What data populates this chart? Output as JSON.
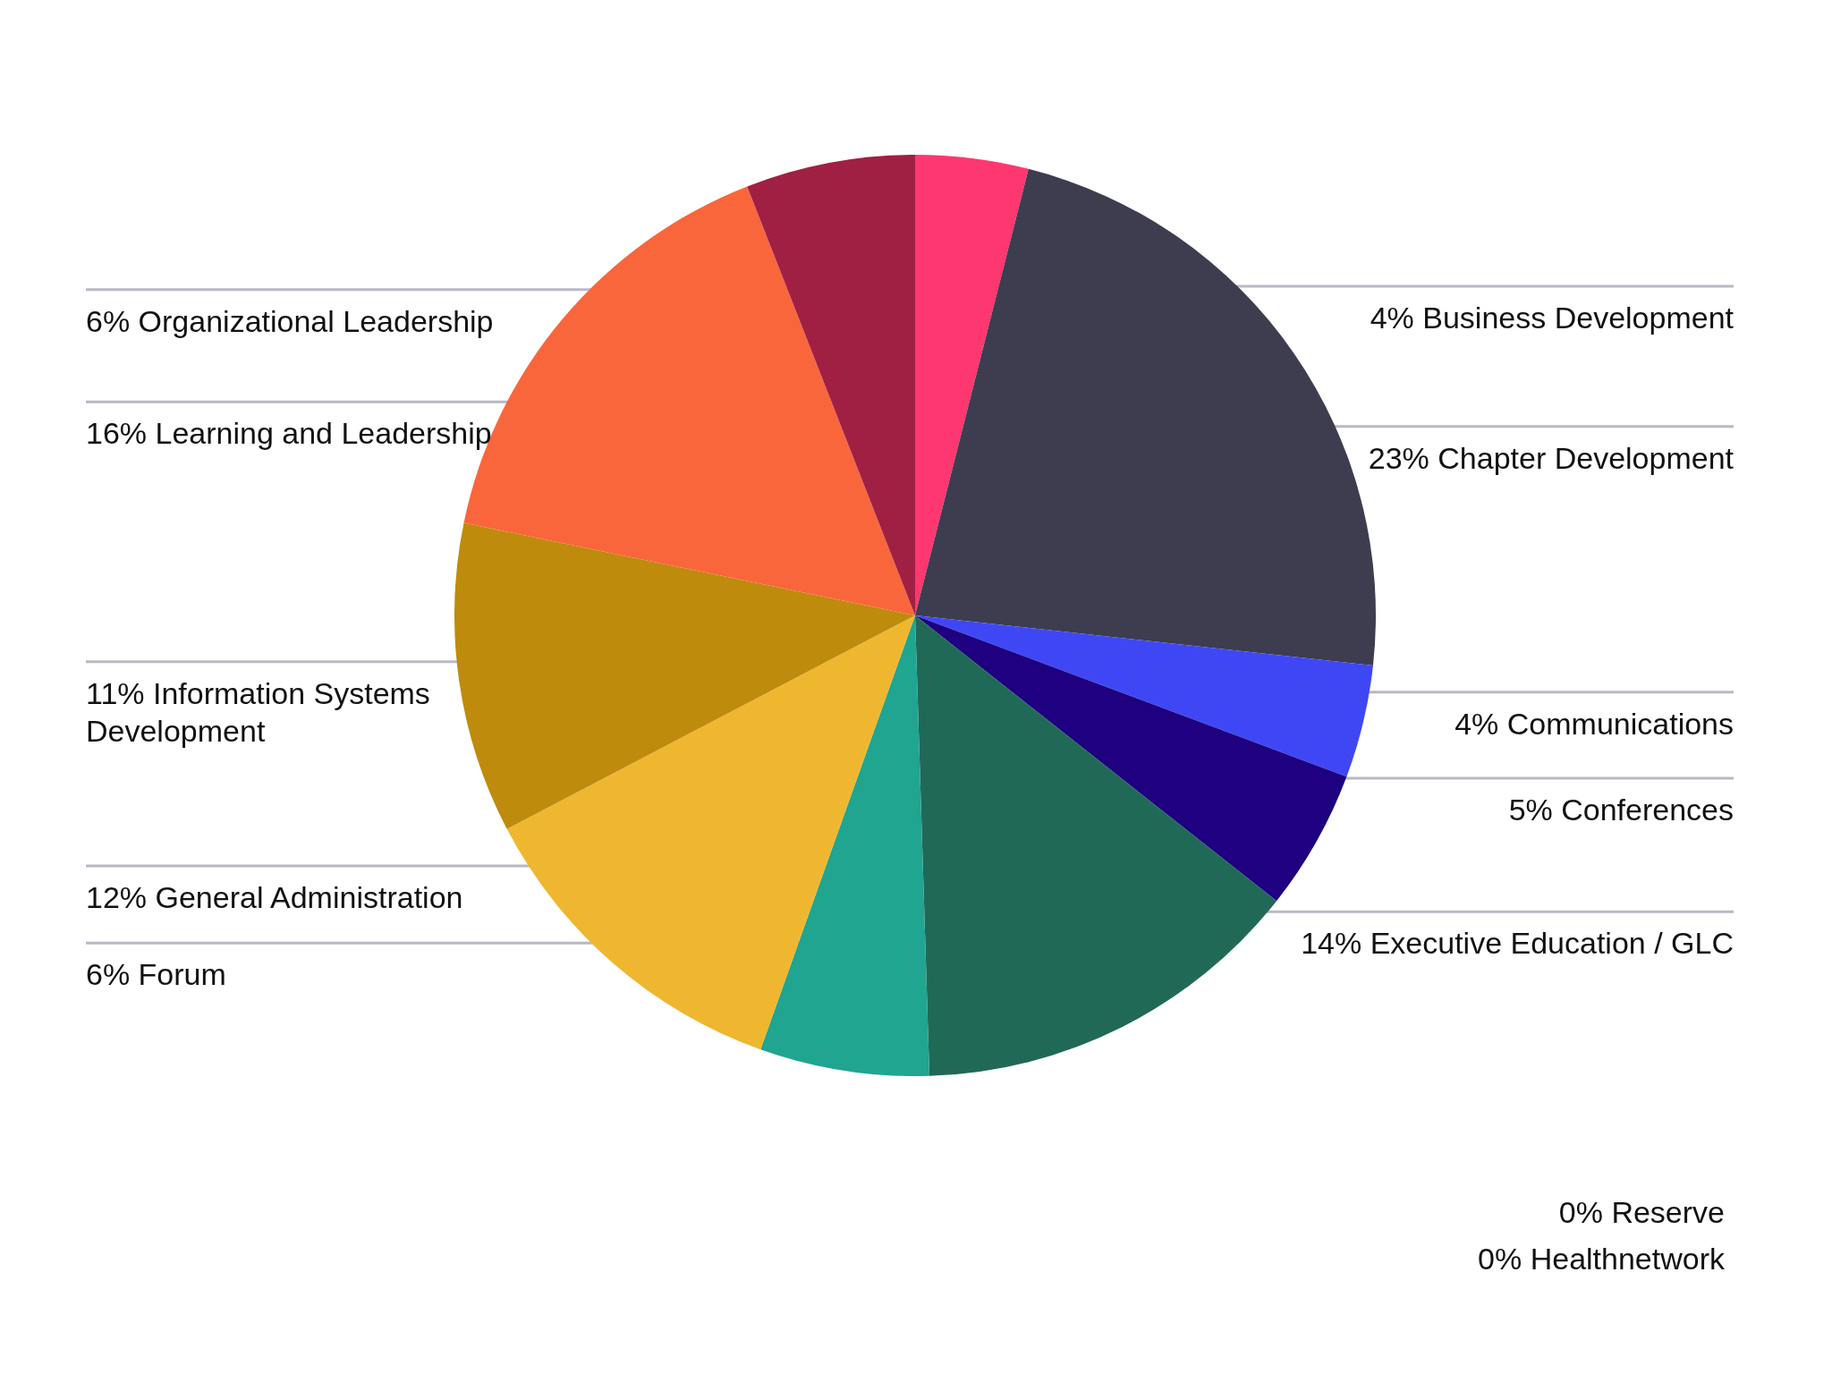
{
  "chart_data": {
    "type": "pie",
    "categories": [
      "Business Development",
      "Chapter Development",
      "Communications",
      "Conferences",
      "Executive Education / GLC",
      "Forum",
      "General Administration",
      "Information Systems Development",
      "Learning and Leadership",
      "Organizational Leadership",
      "Reserve",
      "Healthnetwork"
    ],
    "values": [
      4,
      23,
      4,
      5,
      14,
      6,
      12,
      11,
      16,
      6,
      0,
      0
    ],
    "value_labels": [
      "4%",
      "23%",
      "4%",
      "5%",
      "14%",
      "6%",
      "12%",
      "11%",
      "16%",
      "6%",
      "0%",
      "0%"
    ],
    "colors": [
      "#ff3770",
      "#3d3d4f",
      "#3f47f5",
      "#1e0080",
      "#216957",
      "#20a590",
      "#efb730",
      "#be8b0c",
      "#f9663c",
      "#a02043",
      null,
      null
    ]
  }
}
